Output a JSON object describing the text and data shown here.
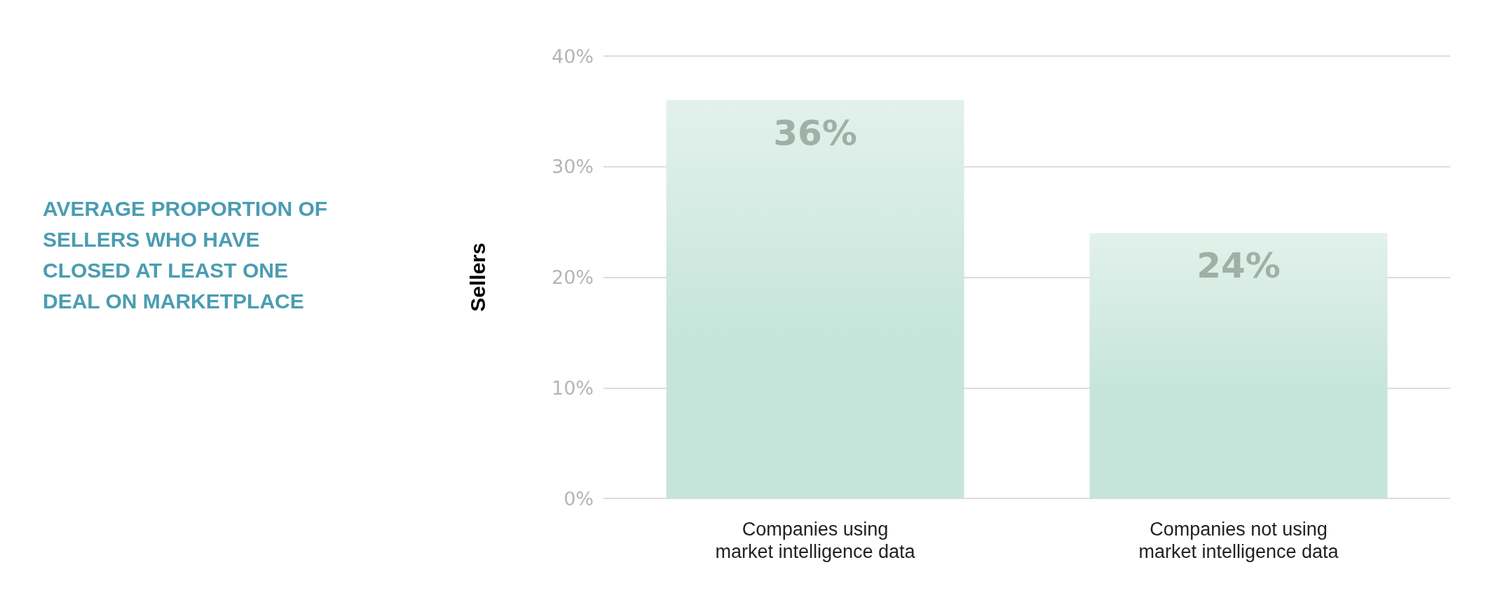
{
  "chart_data": {
    "type": "bar",
    "title": "AVERAGE PROPORTION OF SELLERS WHO HAVE CLOSED AT LEAST ONE DEAL ON MARKETPLACE",
    "ylabel": "Sellers",
    "categories": [
      "Companies using\nmarket intelligence data",
      "Companies not using\nmarket intelligence data"
    ],
    "values": [
      36,
      24
    ],
    "color": "#c6e5da",
    "value_labels": [
      "36%",
      "24%"
    ],
    "ylim": [
      0,
      40
    ],
    "yticks": [
      {
        "value": 0,
        "label": "0%"
      },
      {
        "value": 10,
        "label": "10%"
      },
      {
        "value": 20,
        "label": "20%"
      },
      {
        "value": 30,
        "label": "30%"
      },
      {
        "value": 40,
        "label": "40%"
      }
    ],
    "grid": "y"
  }
}
